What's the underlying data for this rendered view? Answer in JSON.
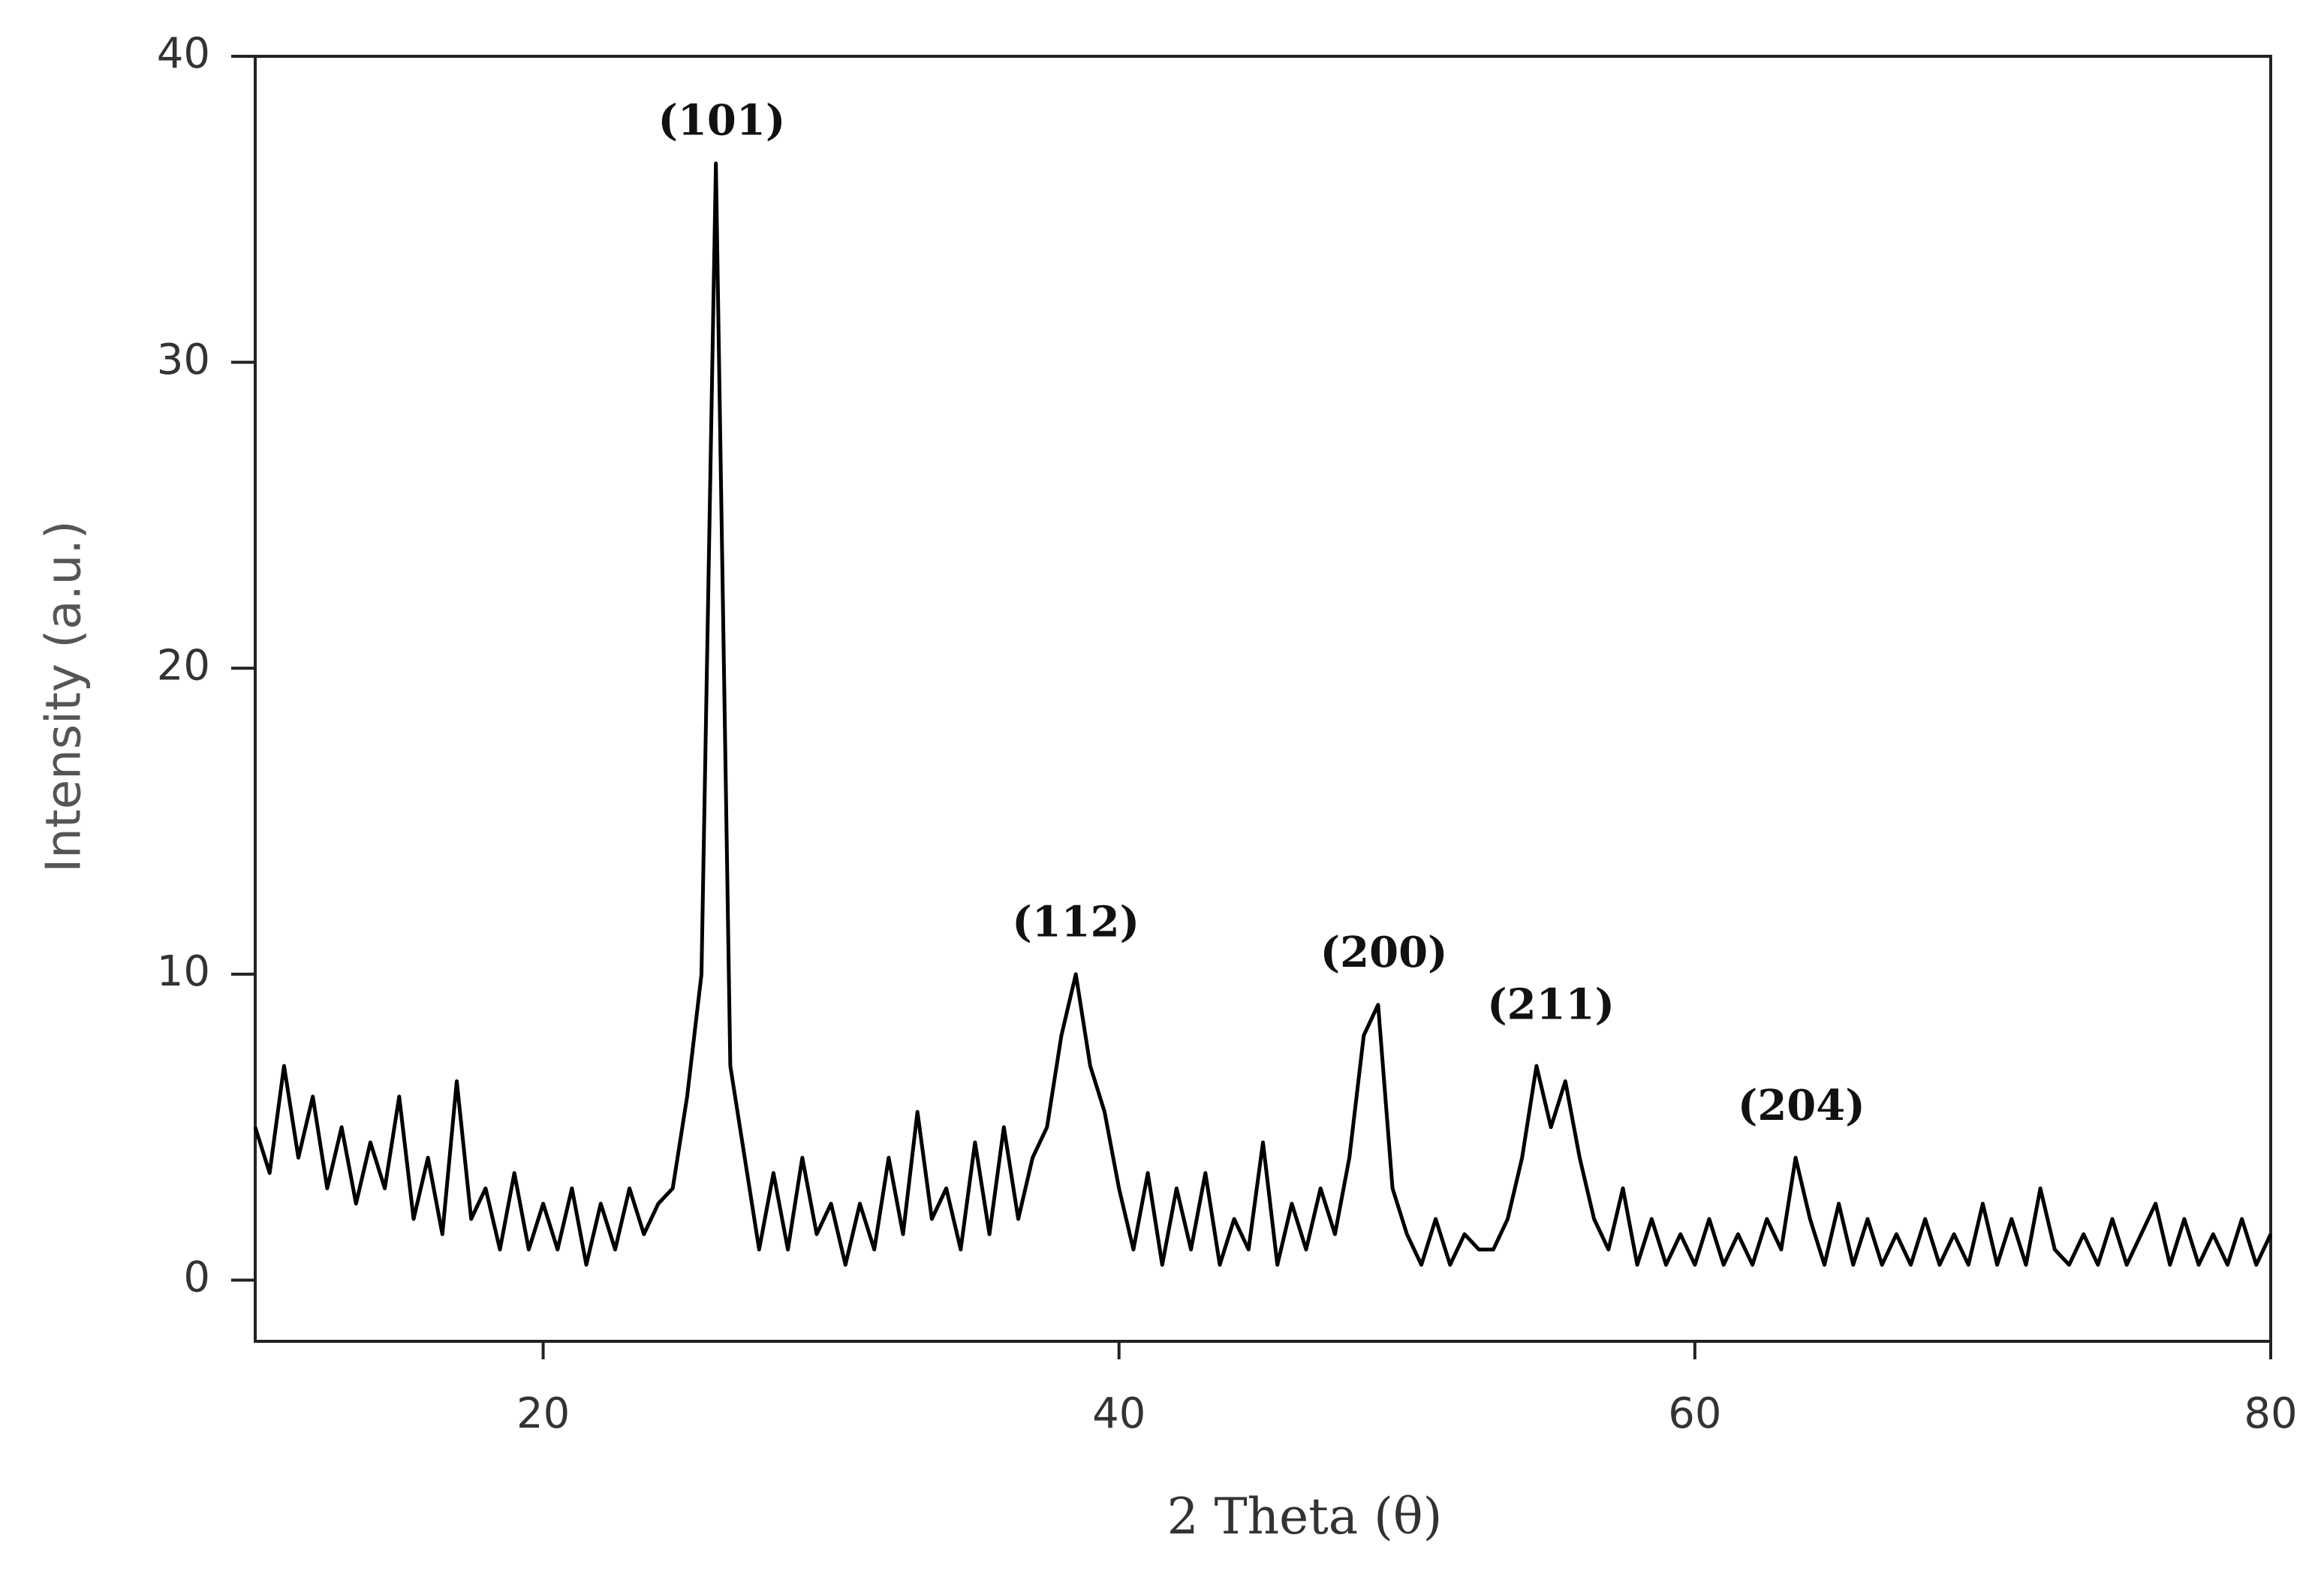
{
  "chart_data": {
    "type": "line",
    "x_label": "2 Theta (θ)",
    "y_label": "Intensity (a.u.)",
    "x": [
      10,
      10.5,
      11,
      11.5,
      12,
      12.5,
      13,
      13.5,
      14,
      14.5,
      15,
      15.5,
      16,
      16.5,
      17,
      17.5,
      18,
      18.5,
      19,
      19.5,
      20,
      20.5,
      21,
      21.5,
      22,
      22.5,
      23,
      23.5,
      24,
      24.5,
      25,
      25.5,
      26,
      26.5,
      27,
      27.5,
      28,
      28.5,
      29,
      29.5,
      30,
      30.5,
      31,
      31.5,
      32,
      32.5,
      33,
      33.5,
      34,
      34.5,
      35,
      35.5,
      36,
      36.5,
      37,
      37.5,
      38,
      38.5,
      39,
      39.5,
      40,
      40.5,
      41,
      41.5,
      42,
      42.5,
      43,
      43.5,
      44,
      44.5,
      45,
      45.5,
      46,
      46.5,
      47,
      47.5,
      48,
      48.5,
      49,
      49.5,
      50,
      50.5,
      51,
      51.5,
      52,
      52.5,
      53,
      53.5,
      54,
      54.5,
      55,
      55.5,
      56,
      56.5,
      57,
      57.5,
      58,
      58.5,
      59,
      59.5,
      60,
      60.5,
      61,
      61.5,
      62,
      62.5,
      63,
      63.5,
      64,
      64.5,
      65,
      65.5,
      66,
      66.5,
      67,
      67.5,
      68,
      68.5,
      69,
      69.5,
      70,
      70.5,
      71,
      71.5,
      72,
      72.5,
      73,
      73.5,
      74,
      74.5,
      75,
      75.5,
      76,
      76.5,
      77,
      77.5,
      78,
      78.5,
      79,
      79.5,
      80
    ],
    "values": [
      5,
      3.5,
      7,
      4,
      6,
      3,
      5,
      2.5,
      4.5,
      3,
      6,
      2,
      4,
      1.5,
      6.5,
      2,
      3,
      1,
      3.5,
      1,
      2.5,
      1,
      3,
      0.5,
      2.5,
      1,
      3,
      1.5,
      2.5,
      3,
      6,
      10,
      36.5,
      7,
      4,
      1,
      3.5,
      1,
      4,
      1.5,
      2.5,
      0.5,
      2.5,
      1,
      4,
      1.5,
      5.5,
      2,
      3,
      1,
      4.5,
      1.5,
      5,
      2,
      4,
      5,
      8,
      10,
      7,
      5.5,
      3,
      1,
      3.5,
      0.5,
      3,
      1,
      3.5,
      0.5,
      2,
      1,
      4.5,
      0.5,
      2.5,
      1,
      3,
      1.5,
      4,
      8,
      9,
      3,
      1.5,
      0.5,
      2,
      0.5,
      1.5,
      1,
      1,
      2,
      4,
      7,
      5,
      6.5,
      4,
      2,
      1,
      3,
      0.5,
      2,
      0.5,
      1.5,
      0.5,
      2,
      0.5,
      1.5,
      0.5,
      2,
      1,
      4,
      2,
      0.5,
      2.5,
      0.5,
      2,
      0.5,
      1.5,
      0.5,
      2,
      0.5,
      1.5,
      0.5,
      2.5,
      0.5,
      2,
      0.5,
      3,
      1,
      0.5,
      1.5,
      0.5,
      2,
      0.5,
      1.5,
      2.5,
      0.5,
      2,
      0.5,
      1.5,
      0.5,
      2,
      0.5,
      1.5
    ],
    "color": "#000000",
    "xlim": [
      10,
      80
    ],
    "xticks": [
      20,
      40,
      60,
      80
    ],
    "ylim": [
      -2,
      40
    ],
    "yticks": [
      0,
      10,
      20,
      30,
      40
    ],
    "annotations": [
      {
        "text": "(101)",
        "x": 26.2,
        "y": 37.8
      },
      {
        "text": "(112)",
        "x": 38.5,
        "y": 11.6
      },
      {
        "text": "(200)",
        "x": 49.2,
        "y": 10.6
      },
      {
        "text": "(211)",
        "x": 55.0,
        "y": 8.9
      },
      {
        "text": "(204)",
        "x": 63.7,
        "y": 5.6
      }
    ]
  }
}
